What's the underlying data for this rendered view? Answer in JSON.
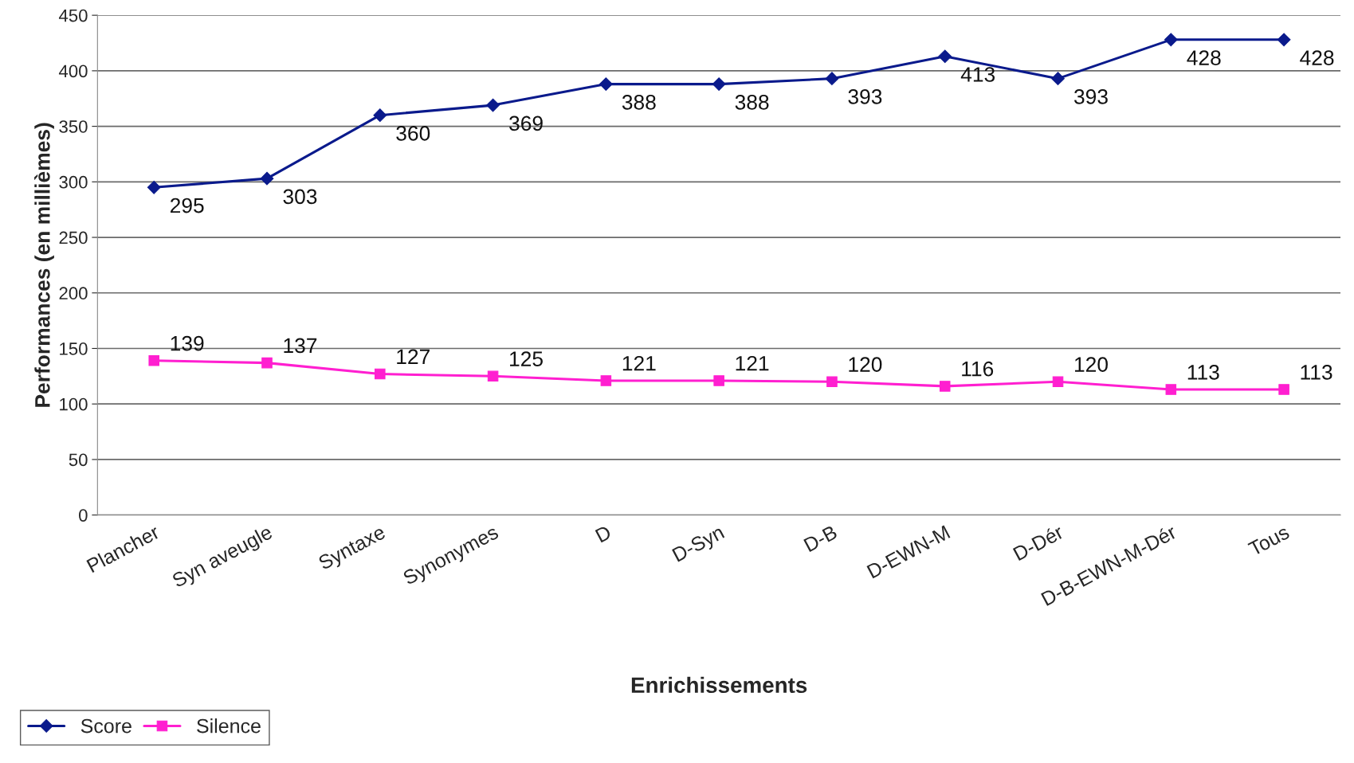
{
  "chart_data": {
    "type": "line",
    "xlabel": "Enrichissements",
    "ylabel": "Performances (en millièmes)",
    "categories": [
      "Plancher",
      "Syn aveugle",
      "Syntaxe",
      "Synonymes",
      "D",
      "D-Syn",
      "D-B",
      "D-EWN-M",
      "D-Dér",
      "D-B-EWN-M-Dér",
      "Tous"
    ],
    "series": [
      {
        "name": "Score",
        "color": "#0a1a8c",
        "marker": "diamond",
        "values": [
          295,
          303,
          360,
          369,
          388,
          388,
          393,
          413,
          393,
          428,
          428
        ]
      },
      {
        "name": "Silence",
        "color": "#ff1fd0",
        "marker": "square",
        "values": [
          139,
          137,
          127,
          125,
          121,
          121,
          120,
          116,
          120,
          113,
          113
        ]
      }
    ],
    "ylim": [
      0,
      450
    ],
    "yticks": [
      0,
      50,
      100,
      150,
      200,
      250,
      300,
      350,
      400,
      450
    ],
    "grid": "y",
    "legend": "bottom left",
    "data_labels": true,
    "line_style": "solid"
  }
}
